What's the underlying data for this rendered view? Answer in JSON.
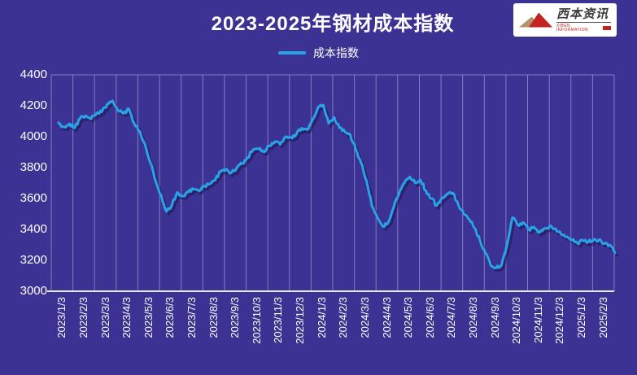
{
  "header": {
    "title": "2023-2025年钢材成本指数"
  },
  "logo": {
    "name_cn": "西本资讯",
    "name_en": "XIBEN INFORMATION"
  },
  "legend": {
    "label": "成本指数"
  },
  "colors": {
    "background": "#3b3294",
    "gridline": "#8f8cc9",
    "axis_line": "#e6e5f5",
    "text": "#ffffff",
    "line": "#2aa2e6",
    "line_shadow": "#14113e",
    "logo_red": "#c3231e",
    "logo_tan": "#b3926a"
  },
  "chart_data": {
    "type": "line",
    "title": "2023-2025年钢材成本指数",
    "xlabel": "",
    "ylabel": "",
    "ylim": [
      3000,
      4400
    ],
    "ytick_step": 200,
    "yticks": [
      4400,
      4200,
      4000,
      3800,
      3600,
      3400,
      3200,
      3000
    ],
    "grid": "vertical-only",
    "legend_position": "top-center",
    "categories": [
      "2023/1/3",
      "2023/2/3",
      "2023/3/3",
      "2023/4/3",
      "2023/5/3",
      "2023/6/3",
      "2023/7/3",
      "2023/8/3",
      "2023/9/3",
      "2023/10/3",
      "2023/11/3",
      "2023/12/3",
      "2024/1/3",
      "2024/2/3",
      "2024/3/3",
      "2024/4/3",
      "2024/5/3",
      "2024/6/3",
      "2024/7/3",
      "2024/8/3",
      "2024/9/3",
      "2024/10/3",
      "2024/11/3",
      "2024/12/3",
      "2025/1/3",
      "2025/2/3"
    ],
    "points_per_month": 4,
    "series": [
      {
        "name": "成本指数",
        "color": "#2aa2e6",
        "values": [
          4090,
          4066,
          4083,
          4058,
          4120,
          4135,
          4115,
          4150,
          4160,
          4210,
          4232,
          4170,
          4150,
          4180,
          4085,
          4035,
          3950,
          3830,
          3710,
          3620,
          3515,
          3560,
          3640,
          3615,
          3642,
          3660,
          3648,
          3680,
          3695,
          3720,
          3775,
          3790,
          3768,
          3800,
          3825,
          3865,
          3915,
          3920,
          3900,
          3940,
          3965,
          3950,
          4000,
          3995,
          4015,
          4055,
          4045,
          4110,
          4190,
          4205,
          4085,
          4125,
          4058,
          4030,
          4010,
          3920,
          3830,
          3715,
          3550,
          3480,
          3420,
          3445,
          3540,
          3630,
          3700,
          3740,
          3700,
          3720,
          3650,
          3600,
          3555,
          3605,
          3630,
          3635,
          3560,
          3500,
          3465,
          3410,
          3330,
          3250,
          3165,
          3150,
          3170,
          3300,
          3475,
          3430,
          3445,
          3400,
          3415,
          3380,
          3408,
          3425,
          3405,
          3370,
          3352,
          3330,
          3312,
          3330,
          3318,
          3333,
          3332,
          3310,
          3300,
          3248
        ]
      }
    ]
  }
}
